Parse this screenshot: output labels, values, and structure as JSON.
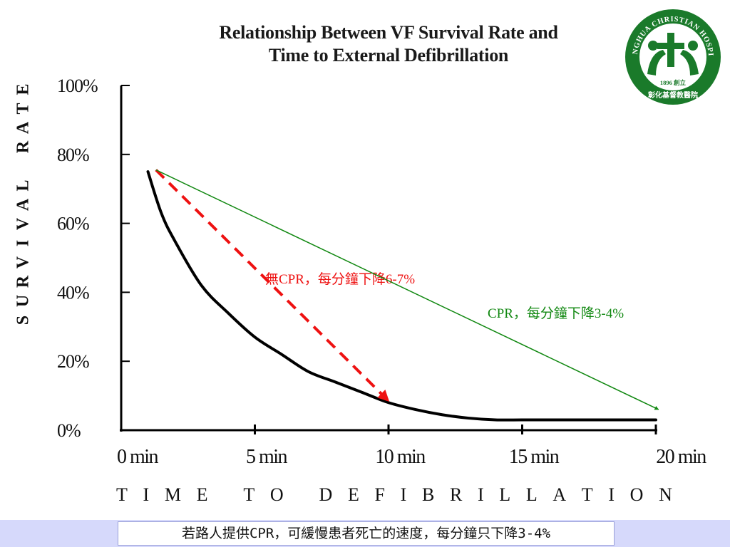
{
  "chart_data": {
    "type": "line",
    "title_line1": "Relationship Between VF Survival Rate and",
    "title_line2": "Time to External Defibrillation",
    "ylabel": "SURVIVAL RATE",
    "xlabel": "TIME TO DEFIBRILLATION",
    "y_ticks": [
      "100%",
      "80%",
      "60%",
      "40%",
      "20%",
      "0%"
    ],
    "y_tick_values": [
      100,
      80,
      60,
      40,
      20,
      0
    ],
    "x_ticks": [
      "0 min",
      "5 min",
      "10 min",
      "15 min",
      "20 min"
    ],
    "x_tick_values": [
      0,
      5,
      10,
      15,
      20
    ],
    "xlim": [
      0,
      20
    ],
    "ylim": [
      0,
      100
    ],
    "series": [
      {
        "color": "#000000",
        "x": [
          1,
          1.5,
          2,
          3,
          4,
          5,
          6,
          7,
          8,
          9,
          10,
          11,
          12,
          13,
          14,
          15,
          16,
          17,
          18,
          19,
          20
        ],
        "y": [
          75,
          63,
          55,
          42,
          34,
          27,
          22,
          17,
          14,
          11,
          8,
          6,
          4.5,
          3.5,
          3,
          3,
          3,
          3,
          3,
          3,
          3
        ]
      }
    ],
    "annotations": [
      {
        "text": "無CPR，每分鐘下降6-7%",
        "color": "#ee1111",
        "style": "dashed",
        "from": [
          1.3,
          75.5
        ],
        "to": [
          10,
          8.5
        ]
      },
      {
        "text": "CPR，每分鐘下降3-4%",
        "color": "#118811",
        "style": "solid",
        "from": [
          1.3,
          75.5
        ],
        "to": [
          20.1,
          6
        ]
      }
    ],
    "grid": false,
    "legend": "none"
  },
  "logo": {
    "ring_text": "CHANGHUA CHRISTIAN HOSPITAL",
    "year_text": "1896 創立",
    "name_text": "彰化基督教醫院",
    "color": "#1a7a2a"
  },
  "footer": {
    "text": "若路人提供CPR，可緩慢患者死亡的速度，每分鐘只下降3-4%"
  }
}
